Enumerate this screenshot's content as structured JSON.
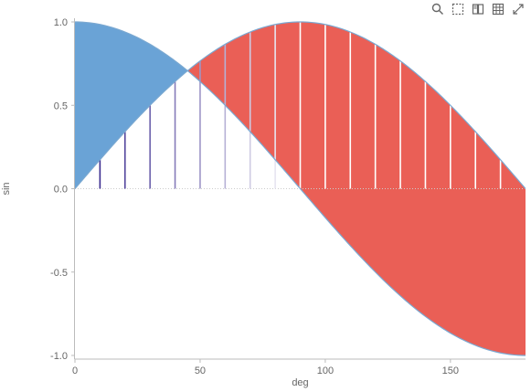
{
  "toolbar": {
    "icons": [
      "search-icon",
      "box-select-icon",
      "brush-icon",
      "table-icon",
      "expand-icon"
    ]
  },
  "colors": {
    "cos_fill": "#6aa3d6",
    "sin_fill": "#ea5f56",
    "line": "#7aa8d1",
    "stem_dark": "#3b2c8f",
    "stem_light": "#ffffff",
    "axis": "#bbbbbb",
    "guide": "#cccccc"
  },
  "chart_data": {
    "type": "area",
    "xlabel": "deg",
    "ylabel": "sin",
    "xlim": [
      0,
      180
    ],
    "ylim": [
      -1,
      1
    ],
    "xticks": [
      0,
      50,
      100,
      150
    ],
    "yticks": [
      1.0,
      0.5,
      0.0,
      -0.5,
      -1.0
    ],
    "ytick_labels": [
      "1.0",
      "0.5",
      "0.0",
      "-0.5",
      "-1.0"
    ],
    "xtick_labels": [
      "0",
      "50",
      "100",
      "150"
    ],
    "x": [
      0,
      10,
      20,
      30,
      40,
      50,
      60,
      70,
      80,
      90,
      100,
      110,
      120,
      130,
      140,
      150,
      160,
      170,
      180
    ],
    "series": [
      {
        "values": [
          0.0,
          0.174,
          0.342,
          0.5,
          0.643,
          0.766,
          0.866,
          0.94,
          0.985,
          1.0,
          0.985,
          0.94,
          0.866,
          0.766,
          0.643,
          0.5,
          0.342,
          0.174,
          0.0
        ]
      },
      {
        "values": [
          1.0,
          0.985,
          0.94,
          0.866,
          0.766,
          0.643,
          0.5,
          0.342,
          0.174,
          0.0,
          -0.174,
          -0.342,
          -0.5,
          -0.643,
          -0.766,
          -0.866,
          -0.94,
          -0.985,
          -1.0
        ]
      }
    ],
    "stems": {
      "x": [
        10,
        20,
        30,
        40,
        50,
        60,
        70,
        80,
        90,
        100,
        110,
        120,
        130,
        140,
        150,
        160,
        170
      ],
      "y": [
        0.174,
        0.342,
        0.5,
        0.643,
        0.766,
        0.866,
        0.94,
        0.985,
        1.0,
        0.985,
        0.94,
        0.866,
        0.766,
        0.643,
        0.5,
        0.342,
        0.174
      ]
    }
  }
}
